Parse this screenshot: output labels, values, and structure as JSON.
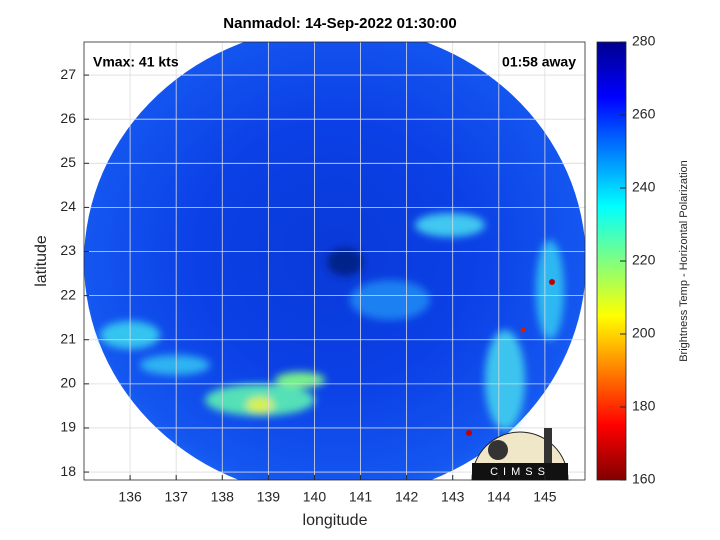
{
  "chart_data": {
    "type": "image",
    "title": "Nanmadol: 14-Sep-2022 01:30:00",
    "annotations": [
      "Vmax: 41 kts",
      "01:58 away"
    ],
    "xlabel": "longitude",
    "ylabel": "latitude",
    "xlim": [
      135.0,
      145.87
    ],
    "ylim": [
      17.82,
      27.75
    ],
    "xticks": [
      136,
      137,
      138,
      139,
      140,
      141,
      142,
      143,
      144,
      145
    ],
    "yticks": [
      18,
      19,
      20,
      21,
      22,
      23,
      24,
      25,
      26,
      27
    ],
    "grid": true,
    "colorbar": {
      "label": "Brightness Temp - Horizontal Polarization",
      "lim": [
        160,
        280
      ],
      "ticks": [
        160,
        180,
        200,
        220,
        240,
        260,
        280
      ]
    },
    "logo": "CIMSS"
  }
}
